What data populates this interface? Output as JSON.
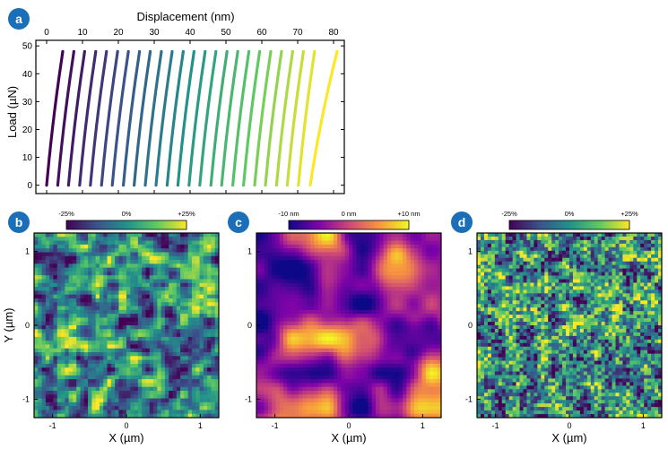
{
  "panels": {
    "a": {
      "badge": "a",
      "chart_data": {
        "type": "line",
        "title": "",
        "xlabel": "Displacement (nm)",
        "ylabel": "Load (µN)",
        "xlim": [
          -3,
          83
        ],
        "ylim": [
          -3,
          52
        ],
        "xticks": [
          0,
          10,
          20,
          30,
          40,
          50,
          60,
          70,
          80
        ],
        "yticks": [
          0,
          10,
          20,
          30,
          40,
          50
        ],
        "series_count": 25,
        "series_start_x": [
          0,
          3.1,
          6.1,
          9.2,
          12.2,
          15.3,
          18.3,
          21.4,
          24.4,
          27.5,
          30.5,
          33.6,
          36.6,
          39.7,
          42.7,
          45.8,
          48.8,
          51.9,
          54.9,
          58.0,
          61.0,
          64.1,
          67.1,
          70.2,
          73.5
        ],
        "series_end_x": [
          4.5,
          7.6,
          10.6,
          13.7,
          16.7,
          19.8,
          22.8,
          25.9,
          28.9,
          32.0,
          35.0,
          38.1,
          41.1,
          44.2,
          47.2,
          50.3,
          53.3,
          56.4,
          59.4,
          62.5,
          65.5,
          68.6,
          71.6,
          74.7,
          81.0
        ],
        "load_range": [
          0,
          48
        ]
      }
    },
    "b": {
      "badge": "b",
      "colorbar": {
        "min_label": "-25%",
        "mid_label": "0%",
        "max_label": "+25%"
      },
      "xlabel": "X (µm)",
      "ylabel": "Y (µm)",
      "xticks": [
        "-1",
        "0",
        "1"
      ],
      "yticks": [
        "1",
        "0",
        "-1"
      ],
      "colormap": "viridis"
    },
    "c": {
      "badge": "c",
      "colorbar": {
        "min_label": "-10 nm",
        "mid_label": "0 nm",
        "max_label": "+10 nm"
      },
      "xlabel": "X (µm)",
      "xticks": [
        "-1",
        "0",
        "1"
      ],
      "yticks": [
        "1",
        "0",
        "-1"
      ],
      "colormap": "plasma"
    },
    "d": {
      "badge": "d",
      "colorbar": {
        "min_label": "-25%",
        "mid_label": "0%",
        "max_label": "+25%"
      },
      "xlabel": "X (µm)",
      "xticks": [
        "-1",
        "0",
        "1"
      ],
      "yticks": [
        "1",
        "0",
        "-1"
      ],
      "colormap": "viridis"
    }
  },
  "colors": {
    "badge": "#1a6fb8",
    "badge_text": "#ffffff",
    "axis": "#000000"
  }
}
